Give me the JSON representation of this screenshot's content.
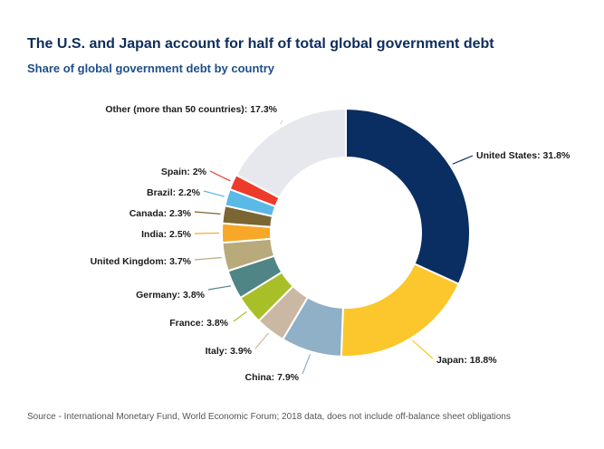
{
  "title": "The U.S. and Japan account for half of total global government debt",
  "subtitle": "Share of global government debt by country",
  "source": "Source - International Monetary Fund, World Economic Forum; 2018 data, does not include off-balance sheet obligations",
  "chart_data": {
    "type": "pie",
    "style": "donut",
    "title": "The U.S. and Japan account for half of total global government debt",
    "subtitle": "Share of global government debt by country",
    "unit": "%",
    "slices": [
      {
        "label": "United States",
        "value": 31.8,
        "text": "United States: 31.8%",
        "color": "#0b2e62"
      },
      {
        "label": "Japan",
        "value": 18.8,
        "text": "Japan: 18.8%",
        "color": "#fcc72c"
      },
      {
        "label": "China",
        "value": 7.9,
        "text": "China: 7.9%",
        "color": "#8fb0c6"
      },
      {
        "label": "Italy",
        "value": 3.9,
        "text": "Italy: 3.9%",
        "color": "#cbb8a4"
      },
      {
        "label": "France",
        "value": 3.8,
        "text": "France: 3.8%",
        "color": "#a9bf28"
      },
      {
        "label": "Germany",
        "value": 3.8,
        "text": "Germany: 3.8%",
        "color": "#4f8584"
      },
      {
        "label": "United Kingdom",
        "value": 3.7,
        "text": "United Kingdom: 3.7%",
        "color": "#b9aa7c"
      },
      {
        "label": "India",
        "value": 2.5,
        "text": "India: 2.5%",
        "color": "#f7a828"
      },
      {
        "label": "Canada",
        "value": 2.3,
        "text": "Canada: 2.3%",
        "color": "#7b6633"
      },
      {
        "label": "Brazil",
        "value": 2.2,
        "text": "Brazil: 2.2%",
        "color": "#5ab9e6"
      },
      {
        "label": "Spain",
        "value": 2,
        "text": "Spain: 2%",
        "color": "#ee3a2a"
      },
      {
        "label": "Other (more than 50 countries)",
        "value": 17.3,
        "text": "Other (more than 50 countries): 17.3%",
        "color": "#e6e8ee"
      }
    ]
  }
}
